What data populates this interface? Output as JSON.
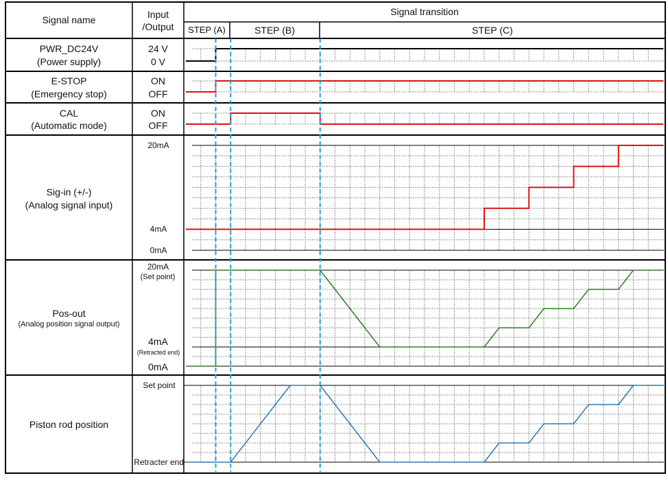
{
  "header": {
    "signal_name": "Signal name",
    "io_line1": "Input",
    "io_line2": "/Output",
    "transition": "Signal transition",
    "steps": [
      {
        "label": "STEP (A)",
        "start": 0,
        "end": 3
      },
      {
        "label": "STEP (B)",
        "start": 3,
        "end": 9
      },
      {
        "label": "STEP (C)",
        "start": 9,
        "end": 32
      }
    ]
  },
  "step_markers": [
    2,
    3,
    9
  ],
  "colors": {
    "marker": "#1ea0d6",
    "power": "#000000",
    "digital": "#e01010",
    "sig_in": "#e01010",
    "pos_out": "#2e7d22",
    "piston": "#2f78b4"
  },
  "time_range": [
    0,
    32
  ],
  "rows": [
    {
      "name": "PWR_DC24V",
      "sub": "(Power supply)",
      "io_high": "24 V",
      "io_low": "0 V",
      "type": "digital",
      "points": [
        [
          0,
          0
        ],
        [
          2,
          0
        ],
        [
          2,
          1
        ],
        [
          32,
          1
        ]
      ]
    },
    {
      "name": "E-STOP",
      "sub": "(Emergency stop)",
      "io_high": "ON",
      "io_low": "OFF",
      "type": "digital",
      "points": [
        [
          0,
          0
        ],
        [
          2,
          0
        ],
        [
          2,
          1
        ],
        [
          32,
          1
        ]
      ]
    },
    {
      "name": "CAL",
      "sub": "(Automatic mode)",
      "io_high": "ON",
      "io_low": "OFF",
      "type": "digital",
      "points": [
        [
          0,
          0
        ],
        [
          3,
          0
        ],
        [
          3,
          1
        ],
        [
          9,
          1
        ],
        [
          9,
          0
        ],
        [
          32,
          0
        ]
      ]
    },
    {
      "name": "Sig-in (+/-)",
      "sub": "(Analog signal input)",
      "type": "analog",
      "unit": "mA",
      "range": [
        0,
        20
      ],
      "labels": [
        "20mA",
        "4mA",
        "0mA"
      ],
      "points": [
        [
          0,
          4
        ],
        [
          20,
          4
        ],
        [
          20,
          8
        ],
        [
          23,
          8
        ],
        [
          23,
          12
        ],
        [
          26,
          12
        ],
        [
          26,
          16
        ],
        [
          29,
          16
        ],
        [
          29,
          20
        ],
        [
          32,
          20
        ]
      ]
    },
    {
      "name": "Pos-out",
      "sub": "(Analog position signal output)",
      "type": "analog",
      "unit": "mA",
      "range": [
        0,
        20
      ],
      "labels": [
        "20mA",
        "(Set point)",
        "4mA",
        "(Retracted end)",
        "0mA"
      ],
      "points": [
        [
          0,
          0
        ],
        [
          2,
          0
        ],
        [
          2,
          20
        ],
        [
          9,
          20
        ],
        [
          13,
          4
        ],
        [
          20,
          4
        ],
        [
          21,
          8
        ],
        [
          23,
          8
        ],
        [
          24,
          12
        ],
        [
          26,
          12
        ],
        [
          27,
          16
        ],
        [
          29,
          16
        ],
        [
          30,
          20
        ],
        [
          32,
          20
        ]
      ]
    },
    {
      "name": "Piston rod position",
      "type": "analog",
      "unit": "%",
      "range": [
        0,
        100
      ],
      "labels": [
        "Set point",
        "Retracter end"
      ],
      "points": [
        [
          0,
          0
        ],
        [
          3,
          0
        ],
        [
          7,
          100
        ],
        [
          9,
          100
        ],
        [
          13,
          0
        ],
        [
          20,
          0
        ],
        [
          21,
          25
        ],
        [
          23,
          25
        ],
        [
          24,
          50
        ],
        [
          26,
          50
        ],
        [
          27,
          75
        ],
        [
          29,
          75
        ],
        [
          30,
          100
        ],
        [
          32,
          100
        ]
      ]
    }
  ]
}
